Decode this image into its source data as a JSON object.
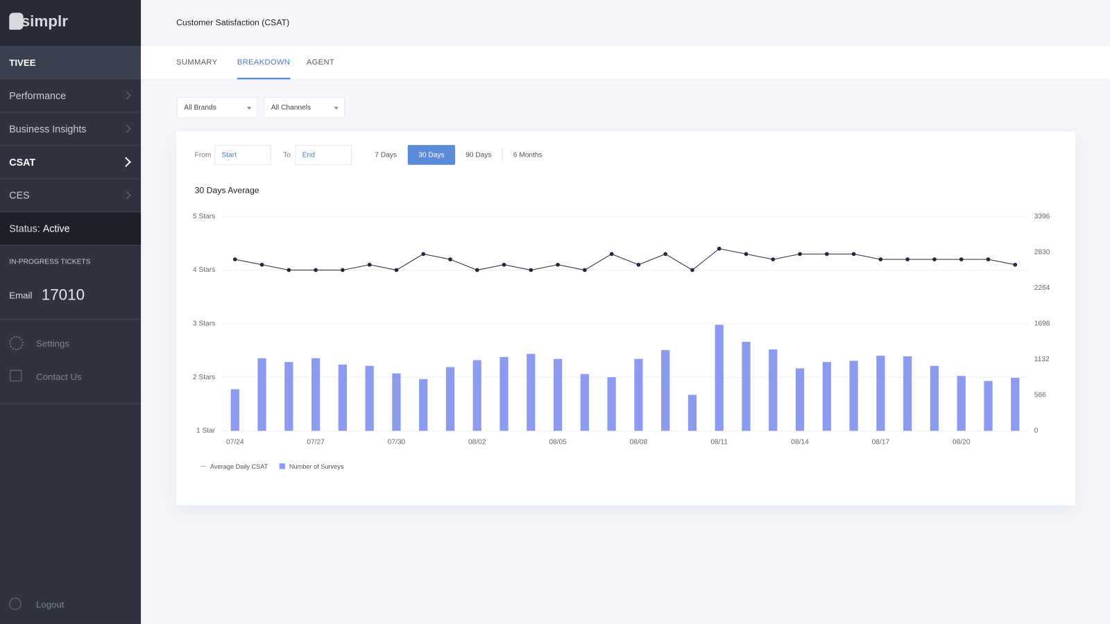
{
  "sidebar": {
    "logo": "simplr",
    "account": "TIVEE",
    "menu": [
      "Performance",
      "Business Insights",
      "CSAT",
      "CES"
    ],
    "status_label": "Status:",
    "status_value": "Active",
    "tickets_heading": "IN-PROGRESS TICKETS",
    "tickets_label": "Email",
    "tickets_count": 17010,
    "links": [
      "Settings",
      "Contact Us"
    ],
    "logout": "Logout"
  },
  "header": {
    "title": "Customer Satisfaction (CSAT)"
  },
  "tabs": [
    "SUMMARY",
    "BREAKDOWN",
    "AGENT"
  ],
  "filters": [
    "All Brands",
    "All Channels"
  ],
  "date_range": {
    "from_label": "From",
    "from_placeholder": "Start",
    "to_label": "To",
    "to_placeholder": "End",
    "presets": [
      "7 Days",
      "30 Days",
      "90 Days",
      "6 Months"
    ]
  },
  "chart_data": {
    "type": "bar",
    "title": "30 Days Average",
    "categories": [
      "07/24",
      null,
      null,
      "07/27",
      null,
      null,
      "07/30",
      null,
      null,
      "08/02",
      null,
      null,
      "08/05",
      null,
      null,
      "08/08",
      null,
      null,
      "08/11",
      null,
      null,
      "08/14",
      null,
      null,
      "08/17",
      null,
      null,
      "08/20",
      null,
      null
    ],
    "series": [
      {
        "name": "Average Daily CSAT",
        "type": "line",
        "color": "#23283f",
        "axis": "y",
        "values": [
          4.2,
          4.1,
          4.0,
          4.0,
          4.0,
          4.1,
          4.0,
          4.3,
          4.2,
          4.0,
          4.1,
          4.0,
          4.1,
          4.0,
          4.3,
          4.1,
          4.3,
          4.0,
          4.4,
          4.3,
          4.2,
          4.3,
          4.3,
          4.3,
          4.2,
          4.2,
          4.2,
          4.2,
          4.2,
          4.1
        ]
      },
      {
        "name": "Number of Surveys",
        "type": "bar",
        "color": "#8c9bef",
        "axis": "y2",
        "values": [
          660,
          1150,
          1090,
          1150,
          1050,
          1030,
          910,
          820,
          1010,
          1120,
          1170,
          1220,
          1140,
          900,
          850,
          1140,
          1280,
          570,
          1680,
          1410,
          1290,
          990,
          1090,
          1110,
          1190,
          1180,
          1030,
          870,
          790,
          840
        ]
      }
    ],
    "ylim": [
      1,
      5
    ],
    "yticks": [
      {
        "value": 1,
        "label": "1 Star"
      },
      {
        "value": 2,
        "label": "2 Stars"
      },
      {
        "value": 3,
        "label": "3 Stars"
      },
      {
        "value": 4,
        "label": "4 Stars"
      },
      {
        "value": 5,
        "label": "5 Stars"
      }
    ],
    "y2lim": [
      0,
      3396
    ],
    "y2ticks": [
      0,
      566,
      1132,
      1698,
      2264,
      2830,
      3396
    ],
    "grid": true
  }
}
